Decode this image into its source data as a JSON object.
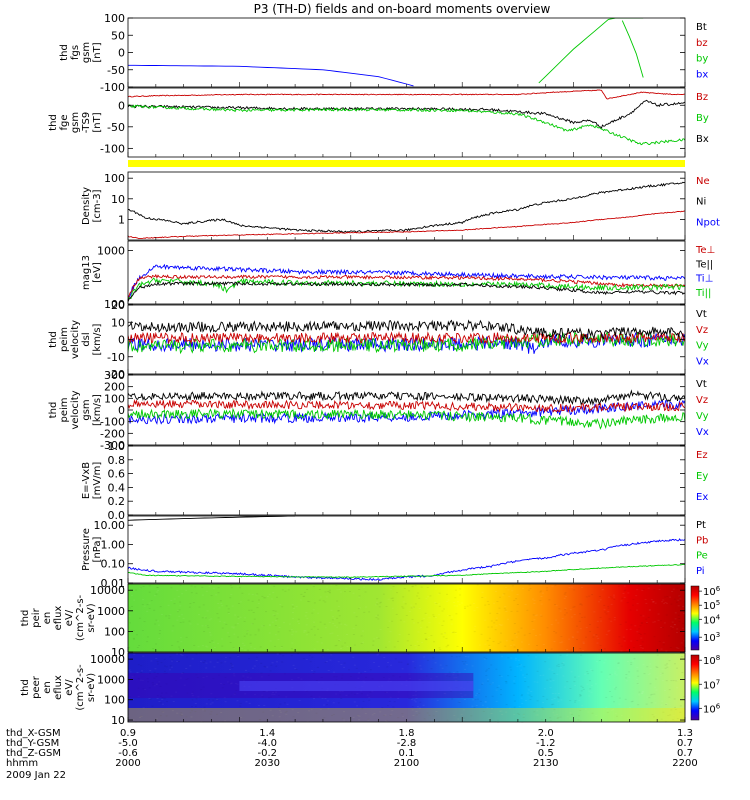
{
  "title": "P3 (TH-D) fields and on-board moments overview",
  "chart_data": [
    {
      "type": "line",
      "ylabel": [
        "thd",
        "fgs",
        "gsm",
        "[nT]"
      ],
      "ylim": [
        -100,
        100
      ],
      "yticks": [
        {
          "v": 100,
          "l": "100"
        },
        {
          "v": 50,
          "l": "50"
        },
        {
          "v": 0,
          "l": "0"
        },
        {
          "v": -50,
          "l": "-50"
        },
        {
          "v": -100,
          "l": "-100"
        }
      ],
      "legend": [
        {
          "name": "Bt",
          "color": "#000000"
        },
        {
          "name": "bz",
          "color": "#c80000"
        },
        {
          "name": "by",
          "color": "#00c800"
        },
        {
          "name": "bx",
          "color": "#0000ff"
        }
      ],
      "series": [
        {
          "name": "bx",
          "color": "#0000ff",
          "noise": 0,
          "x": [
            0,
            0.2,
            0.35,
            0.45,
            0.52
          ],
          "y": [
            -37,
            -40,
            -50,
            -70,
            -100
          ]
        },
        {
          "name": "by",
          "color": "#00c800",
          "noise": 0,
          "x": [
            0.73,
            0.8,
            0.88,
            0.93
          ],
          "y": [
            -100,
            10,
            120,
            120
          ]
        },
        {
          "name": "by",
          "color": "#00c800",
          "noise": 0,
          "x": [
            0.88,
            0.91,
            0.93
          ],
          "y": [
            120,
            10,
            -100
          ]
        }
      ]
    },
    {
      "type": "line",
      "ylabel": [
        "thd",
        "fge",
        "gsm",
        "-TS9",
        "[nT]"
      ],
      "ylim": [
        -120,
        40
      ],
      "yticks": [
        {
          "v": 0,
          "l": "0"
        },
        {
          "v": -50,
          "l": "-50"
        },
        {
          "v": -100,
          "l": "-100"
        }
      ],
      "legend": [
        {
          "name": "Bz",
          "color": "#c80000"
        },
        {
          "name": "By",
          "color": "#00c800"
        },
        {
          "name": "Bx",
          "color": "#000000"
        }
      ],
      "series": [
        {
          "name": "Bz",
          "color": "#c80000",
          "noise": 1,
          "x": [
            0,
            0.05,
            0.2,
            0.5,
            0.7,
            0.76,
            0.85,
            0.86,
            0.92,
            0.98,
            1
          ],
          "y": [
            20,
            22,
            25,
            25,
            25,
            30,
            35,
            15,
            30,
            25,
            25
          ]
        },
        {
          "name": "Bx",
          "color": "#000000",
          "noise": 3,
          "x": [
            0,
            0.3,
            0.5,
            0.65,
            0.75,
            0.8,
            0.83,
            0.85,
            0.9,
            0.93,
            0.95,
            1
          ],
          "y": [
            -2,
            -8,
            -8,
            -10,
            -20,
            -40,
            -35,
            -50,
            -20,
            10,
            0,
            5
          ]
        },
        {
          "name": "By",
          "color": "#00c800",
          "noise": 3,
          "x": [
            0,
            0.2,
            0.4,
            0.6,
            0.7,
            0.75,
            0.79,
            0.83,
            0.88,
            0.92,
            1
          ],
          "y": [
            -2,
            -12,
            -10,
            -12,
            -20,
            -40,
            -60,
            -45,
            -70,
            -90,
            -80
          ]
        }
      ],
      "flag_band": true
    },
    {
      "type": "line",
      "ylabel": [
        "Density",
        "[cm-3]"
      ],
      "scale": "log",
      "ylim": [
        0.1,
        200
      ],
      "yticks": [
        {
          "v": 100,
          "l": "100"
        },
        {
          "v": 10,
          "l": "10"
        },
        {
          "v": 1,
          "l": "1"
        }
      ],
      "legend": [
        {
          "name": "Ne",
          "color": "#c80000"
        },
        {
          "name": "Ni",
          "color": "#000000"
        },
        {
          "name": "Npot",
          "color": "#0000ff"
        }
      ],
      "series": [
        {
          "name": "Ni",
          "color": "#000000",
          "noise": 0.05,
          "x": [
            0,
            0.03,
            0.1,
            0.17,
            0.2,
            0.3,
            0.4,
            0.5,
            0.6,
            0.7,
            0.8,
            0.9,
            1
          ],
          "y": [
            3,
            1.2,
            0.6,
            1,
            0.5,
            0.3,
            0.25,
            0.3,
            0.7,
            3,
            10,
            30,
            60
          ]
        },
        {
          "name": "Ne",
          "color": "#c80000",
          "noise": 0.02,
          "x": [
            0,
            0.02,
            0.1,
            0.3,
            0.5,
            0.6,
            0.7,
            0.8,
            0.9,
            1
          ],
          "y": [
            0.15,
            0.12,
            0.15,
            0.2,
            0.25,
            0.3,
            0.45,
            0.7,
            1.3,
            2.5
          ]
        }
      ]
    },
    {
      "type": "line",
      "ylabel": [
        "mag13",
        "[eV]"
      ],
      "scale": "log",
      "ylim": [
        100,
        1500
      ],
      "yticks": [
        {
          "v": 1000,
          "l": "1000"
        },
        {
          "v": 100,
          "l": "100"
        }
      ],
      "legend": [
        {
          "name": "Te⊥",
          "color": "#c80000"
        },
        {
          "name": "Te||",
          "color": "#000000"
        },
        {
          "name": "Ti⊥",
          "color": "#0000ff"
        },
        {
          "name": "Ti||",
          "color": "#00c800"
        }
      ],
      "series": [
        {
          "name": "Ti⊥",
          "color": "#0000ff",
          "noise": 0.04,
          "x": [
            0,
            0.02,
            0.05,
            0.1,
            0.2,
            0.3,
            0.5,
            0.7,
            1
          ],
          "y": [
            120,
            300,
            500,
            480,
            440,
            400,
            380,
            330,
            300
          ]
        },
        {
          "name": "Te⊥",
          "color": "#c80000",
          "noise": 0.03,
          "x": [
            0,
            0.02,
            0.05,
            0.1,
            0.3,
            0.6,
            0.75,
            0.85,
            0.9,
            1
          ],
          "y": [
            120,
            300,
            330,
            320,
            320,
            310,
            280,
            240,
            220,
            220
          ]
        },
        {
          "name": "Ti||",
          "color": "#00c800",
          "noise": 0.05,
          "x": [
            0,
            0.02,
            0.05,
            0.15,
            0.18,
            0.2,
            0.3,
            0.5,
            0.7,
            0.85,
            1
          ],
          "y": [
            110,
            220,
            280,
            240,
            180,
            260,
            250,
            240,
            230,
            200,
            210
          ]
        },
        {
          "name": "Te||",
          "color": "#000000",
          "noise": 0.03,
          "x": [
            0,
            0.02,
            0.05,
            0.2,
            0.5,
            0.6,
            0.75,
            0.85,
            0.9,
            1
          ],
          "y": [
            110,
            200,
            240,
            240,
            230,
            230,
            200,
            160,
            170,
            160
          ]
        }
      ]
    },
    {
      "type": "line",
      "ylabel": [
        "thd",
        "peim",
        "velocity",
        "dsl",
        "[km/s]"
      ],
      "ylim": [
        -20,
        20
      ],
      "yticks": [
        {
          "v": 20,
          "l": "20"
        },
        {
          "v": 10,
          "l": "10"
        },
        {
          "v": 0,
          "l": "0"
        },
        {
          "v": -10,
          "l": "-10"
        },
        {
          "v": -20,
          "l": "-20"
        }
      ],
      "legend": [
        {
          "name": "Vt",
          "color": "#000000"
        },
        {
          "name": "Vz",
          "color": "#c80000"
        },
        {
          "name": "Vy",
          "color": "#00c800"
        },
        {
          "name": "Vx",
          "color": "#0000ff"
        }
      ],
      "series": [
        {
          "name": "Vx",
          "color": "#0000ff",
          "noise": 4,
          "x": [
            0,
            0.5,
            0.7,
            0.73,
            0.75,
            1
          ],
          "y": [
            -3,
            -3,
            -2,
            -6,
            -1,
            0
          ]
        },
        {
          "name": "Vy",
          "color": "#00c800",
          "noise": 4,
          "x": [
            0,
            0.6,
            0.7,
            0.75,
            1
          ],
          "y": [
            -4,
            -3,
            -2,
            0,
            0
          ]
        },
        {
          "name": "Vz",
          "color": "#c80000",
          "noise": 3,
          "x": [
            0,
            0.5,
            0.7,
            0.8,
            1
          ],
          "y": [
            1,
            1,
            1,
            1,
            1
          ]
        },
        {
          "name": "Vt",
          "color": "#000000",
          "noise": 3,
          "x": [
            0,
            0.5,
            0.65,
            0.75,
            0.85,
            0.9,
            1
          ],
          "y": [
            7,
            8,
            8,
            4,
            3,
            5,
            4
          ]
        }
      ]
    },
    {
      "type": "line",
      "ylabel": [
        "thd",
        "peim",
        "velocity",
        "gsm",
        "[km/s]"
      ],
      "ylim": [
        -300,
        300
      ],
      "yticks": [
        {
          "v": 300,
          "l": "300"
        },
        {
          "v": 200,
          "l": "200"
        },
        {
          "v": 100,
          "l": "100"
        },
        {
          "v": 0,
          "l": "0"
        },
        {
          "v": -100,
          "l": "-100"
        },
        {
          "v": -200,
          "l": "-200"
        },
        {
          "v": -300,
          "l": "-300"
        }
      ],
      "legend": [
        {
          "name": "Vt",
          "color": "#000000"
        },
        {
          "name": "Vz",
          "color": "#c80000"
        },
        {
          "name": "Vy",
          "color": "#00c800"
        },
        {
          "name": "Vx",
          "color": "#0000ff"
        }
      ],
      "series": [
        {
          "name": "Vx",
          "color": "#0000ff",
          "noise": 40,
          "x": [
            0,
            0.5,
            0.7,
            0.8,
            0.9,
            1
          ],
          "y": [
            -80,
            -60,
            -30,
            0,
            30,
            50
          ]
        },
        {
          "name": "Vy",
          "color": "#00c800",
          "noise": 40,
          "x": [
            0,
            0.5,
            0.7,
            0.85,
            0.9,
            1
          ],
          "y": [
            -30,
            -40,
            -70,
            -120,
            -90,
            -60
          ]
        },
        {
          "name": "Vz",
          "color": "#c80000",
          "noise": 35,
          "x": [
            0,
            0.5,
            0.7,
            0.8,
            1
          ],
          "y": [
            50,
            40,
            20,
            20,
            30
          ]
        },
        {
          "name": "Vt",
          "color": "#000000",
          "noise": 35,
          "x": [
            0,
            0.5,
            0.7,
            0.85,
            0.9,
            1
          ],
          "y": [
            120,
            120,
            100,
            80,
            130,
            100
          ]
        }
      ]
    },
    {
      "type": "line",
      "ylabel": [
        "E=-VxB",
        "[mV/m]"
      ],
      "ylim": [
        0,
        1
      ],
      "yticks": [
        {
          "v": 1,
          "l": "1.0"
        },
        {
          "v": 0.8,
          "l": "0.8"
        },
        {
          "v": 0.6,
          "l": "0.6"
        },
        {
          "v": 0.4,
          "l": "0.4"
        },
        {
          "v": 0.2,
          "l": "0.2"
        },
        {
          "v": 0,
          "l": "0.0"
        }
      ],
      "legend": [
        {
          "name": "Ez",
          "color": "#c80000"
        },
        {
          "name": "Ey",
          "color": "#00c800"
        },
        {
          "name": "Ex",
          "color": "#0000ff"
        }
      ],
      "series": []
    },
    {
      "type": "line",
      "ylabel": [
        "Pressure",
        "[nPa]"
      ],
      "scale": "log",
      "ylim": [
        0.01,
        30
      ],
      "yticks": [
        {
          "v": 10,
          "l": "10.00"
        },
        {
          "v": 1,
          "l": "1.00"
        },
        {
          "v": 0.1,
          "l": "0.10"
        },
        {
          "v": 0.01,
          "l": "0.01"
        }
      ],
      "legend": [
        {
          "name": "Pt",
          "color": "#000000"
        },
        {
          "name": "Pb",
          "color": "#c80000"
        },
        {
          "name": "Pe",
          "color": "#00c800"
        },
        {
          "name": "Pi",
          "color": "#0000ff"
        }
      ],
      "series": [
        {
          "name": "Pt",
          "color": "#000000",
          "noise": 0,
          "x": [
            0,
            0.1,
            0.2,
            0.3
          ],
          "y": [
            18,
            22,
            26,
            30
          ]
        },
        {
          "name": "Pi",
          "color": "#0000ff",
          "noise": 0.05,
          "x": [
            0,
            0.05,
            0.2,
            0.3,
            0.45,
            0.55,
            0.65,
            0.75,
            0.85,
            0.95,
            1
          ],
          "y": [
            0.06,
            0.04,
            0.03,
            0.02,
            0.015,
            0.025,
            0.07,
            0.2,
            0.5,
            1.5,
            1.8
          ]
        },
        {
          "name": "Pe",
          "color": "#00c800",
          "noise": 0.02,
          "x": [
            0,
            0.03,
            0.2,
            0.4,
            0.6,
            0.75,
            0.9,
            1
          ],
          "y": [
            0.035,
            0.025,
            0.022,
            0.02,
            0.025,
            0.04,
            0.07,
            0.09
          ]
        }
      ]
    },
    {
      "type": "heatmap",
      "ylabel": [
        "thd",
        "peir",
        "en",
        "eflux",
        "eV/",
        "(cm^2-s-",
        "sr-eV)"
      ],
      "scale": "log",
      "ylim": [
        10,
        20000
      ],
      "yticks": [
        {
          "v": 10000,
          "l": "10000"
        },
        {
          "v": 1000,
          "l": "1000"
        },
        {
          "v": 100,
          "l": "100"
        },
        {
          "v": 10,
          "l": "10"
        }
      ],
      "colorbar": {
        "stops": [
          "#4b00a0",
          "#0000ff",
          "#00c8ff",
          "#00ff64",
          "#ffff00",
          "#ff8000",
          "#ff0000",
          "#b40000"
        ],
        "ticks": [
          {
            "l": "10^6",
            "f": 0.92
          },
          {
            "l": "10^5",
            "f": 0.7
          },
          {
            "l": "10^4",
            "f": 0.48
          },
          {
            "l": "10^3",
            "f": 0.2
          }
        ]
      },
      "gradient": [
        {
          "x": 0,
          "c": "#64dc3c"
        },
        {
          "x": 0.45,
          "c": "#a0e632"
        },
        {
          "x": 0.6,
          "c": "#ffff00"
        },
        {
          "x": 0.75,
          "c": "#ff8c00"
        },
        {
          "x": 0.9,
          "c": "#e60000"
        },
        {
          "x": 1,
          "c": "#b40000"
        }
      ]
    },
    {
      "type": "heatmap",
      "ylabel": [
        "thd",
        "peer",
        "en",
        "eflux",
        "eV/",
        "(cm^2-s-",
        "sr-eV)"
      ],
      "scale": "log",
      "ylim": [
        8,
        20000
      ],
      "yticks": [
        {
          "v": 10000,
          "l": "10000"
        },
        {
          "v": 1000,
          "l": "1000"
        },
        {
          "v": 100,
          "l": "100"
        },
        {
          "v": 10,
          "l": "10"
        }
      ],
      "colorbar": {
        "stops": [
          "#4b00a0",
          "#0000ff",
          "#00c8ff",
          "#00ff64",
          "#ffff00",
          "#ff8000",
          "#ff0000",
          "#b40000"
        ],
        "ticks": [
          {
            "l": "10^8",
            "f": 0.92
          },
          {
            "l": "10^7",
            "f": 0.55
          },
          {
            "l": "10^6",
            "f": 0.18
          }
        ]
      },
      "gradient": [
        {
          "x": 0,
          "c": "#1e1ec8"
        },
        {
          "x": 0.5,
          "c": "#2828dc"
        },
        {
          "x": 0.7,
          "c": "#00b4ff"
        },
        {
          "x": 0.85,
          "c": "#64ffb4"
        },
        {
          "x": 1,
          "c": "#c8f064"
        }
      ]
    }
  ],
  "xaxis": {
    "rows": [
      {
        "label": "thd_X-GSM",
        "values": [
          "0.9",
          "1.4",
          "1.8",
          "2.0",
          "1.3"
        ]
      },
      {
        "label": "thd_Y-GSM",
        "values": [
          "-5.0",
          "-4.0",
          "-2.8",
          "-1.2",
          "0.7"
        ]
      },
      {
        "label": "thd_Z-GSM",
        "values": [
          "-0.6",
          "-0.2",
          "0.1",
          "0.5",
          "0.7"
        ]
      },
      {
        "label": "hhmm",
        "values": [
          "2000",
          "2030",
          "2100",
          "2130",
          "2200"
        ]
      }
    ],
    "date": "2009 Jan 22"
  }
}
